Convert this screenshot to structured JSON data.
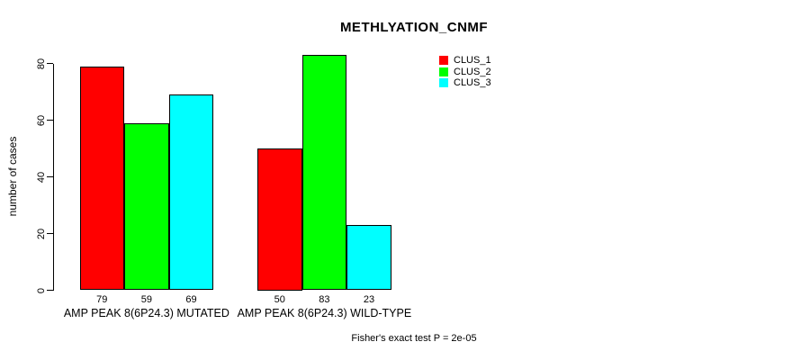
{
  "chart_data": {
    "type": "bar",
    "title": "METHLYATION_CNMF",
    "xlabel": "",
    "ylabel": "number of cases",
    "categories": [
      "AMP PEAK 8(6P24.3) MUTATED",
      "AMP PEAK 8(6P24.3) WILD-TYPE"
    ],
    "series": [
      {
        "name": "CLUS_1",
        "color": "#FF0000",
        "values": [
          79,
          50
        ]
      },
      {
        "name": "CLUS_2",
        "color": "#00FF00",
        "values": [
          59,
          83
        ]
      },
      {
        "name": "CLUS_3",
        "color": "#00FFFF",
        "values": [
          69,
          23
        ]
      }
    ],
    "bar_value_labels_shown": true,
    "y_ticks": [
      0,
      20,
      40,
      60,
      80
    ],
    "ylim": [
      0,
      83
    ],
    "grid": false,
    "legend_position": "top-right-inside",
    "annotation": "Fisher's exact test P = 2e-05"
  }
}
